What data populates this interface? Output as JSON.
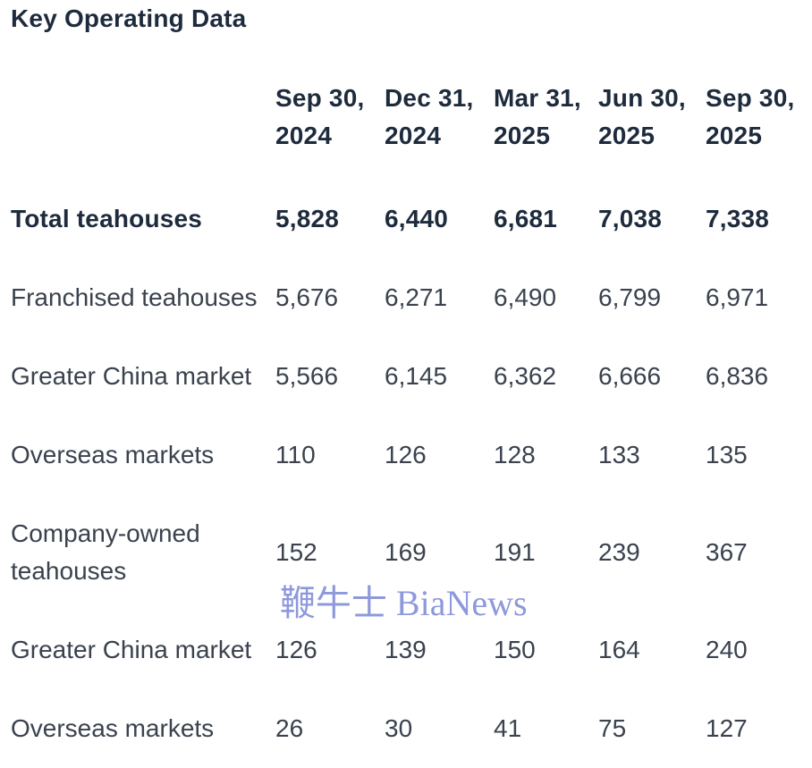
{
  "title": "Key Operating Data",
  "watermark": "鞭牛士 BiaNews",
  "colors": {
    "heading": "#1e2b3d",
    "body_text": "#3a424e",
    "watermark": "#8e99dc",
    "background": "#ffffff"
  },
  "table": {
    "columns": [
      "Sep 30,\n2024",
      "Dec 31,\n2024",
      "Mar 31,\n2025",
      "Jun 30,\n2025",
      "Sep 30,\n2025"
    ],
    "rows": [
      {
        "label": "Total teahouses",
        "emphasis": true,
        "values": [
          "5,828",
          "6,440",
          "6,681",
          "7,038",
          "7,338"
        ]
      },
      {
        "label": "Franchised teahouses",
        "emphasis": false,
        "values": [
          "5,676",
          "6,271",
          "6,490",
          "6,799",
          "6,971"
        ]
      },
      {
        "label": "Greater China market",
        "emphasis": false,
        "values": [
          "5,566",
          "6,145",
          "6,362",
          "6,666",
          "6,836"
        ]
      },
      {
        "label": "Overseas markets",
        "emphasis": false,
        "values": [
          "110",
          "126",
          "128",
          "133",
          "135"
        ]
      },
      {
        "label": "Company-owned teahouses",
        "emphasis": false,
        "values": [
          "152",
          "169",
          "191",
          "239",
          "367"
        ]
      },
      {
        "label": "Greater China market",
        "emphasis": false,
        "values": [
          "126",
          "139",
          "150",
          "164",
          "240"
        ]
      },
      {
        "label": "Overseas markets",
        "emphasis": false,
        "values": [
          "26",
          "30",
          "41",
          "75",
          "127"
        ]
      }
    ]
  }
}
